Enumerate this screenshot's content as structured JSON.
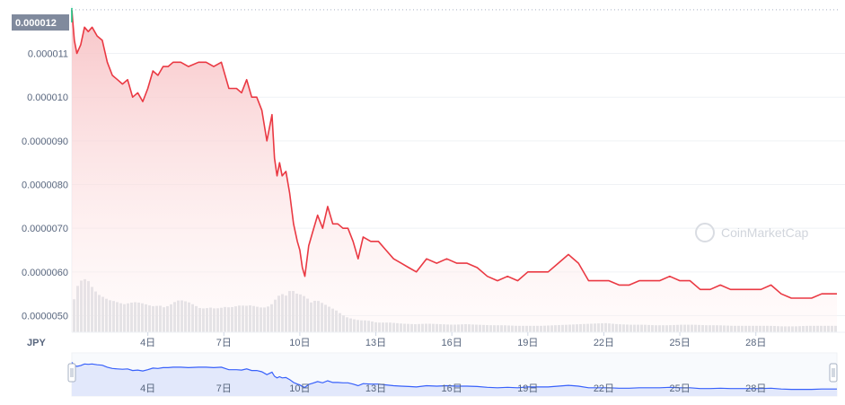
{
  "currency": "JPY",
  "watermark": "CoinMarketCap",
  "current_price_label": "0.000012",
  "colors": {
    "line": "#ea3943",
    "area_top": "#f7c1c4",
    "area_bottom": "#fff3f3",
    "up_segment": "#16c784",
    "volume": "#d9dce1",
    "navigator_fill": "#e2e8fb",
    "navigator_line": "#3861fb",
    "price_tag_bg": "#808a9d"
  },
  "chart_data": {
    "type": "line",
    "xlabel": "",
    "ylabel": "",
    "x_ticks": [
      "4日",
      "7日",
      "10日",
      "13日",
      "16日",
      "19日",
      "22日",
      "25日",
      "28日"
    ],
    "x_tick_days": [
      4,
      7,
      10,
      13,
      16,
      19,
      22,
      25,
      28
    ],
    "y_ticks": [
      "0.0000050",
      "0.0000060",
      "0.0000070",
      "0.0000080",
      "0.0000090",
      "0.000010",
      "0.000011"
    ],
    "y_tick_values": [
      5e-06,
      6e-06,
      7e-06,
      8e-06,
      9e-06,
      1e-05,
      1.1e-05
    ],
    "xlim": [
      1.0,
      31.2
    ],
    "ylim": [
      4.62e-06,
      1.21e-05
    ],
    "series": [
      {
        "day": [
          1.0,
          1.1,
          1.2,
          1.35,
          1.5,
          1.65,
          1.8,
          2.0,
          2.2,
          2.4,
          2.6,
          2.8,
          3.0,
          3.2,
          3.4,
          3.6,
          3.8,
          4.0,
          4.2,
          4.4,
          4.6,
          4.8,
          5.0,
          5.3,
          5.6,
          6.0,
          6.3,
          6.6,
          6.9,
          7.2,
          7.5,
          7.7,
          7.9,
          8.1,
          8.3,
          8.5,
          8.7,
          8.9,
          9.0,
          9.1,
          9.2,
          9.3,
          9.45,
          9.6,
          9.75,
          9.9,
          10.0,
          10.1,
          10.2,
          10.35,
          10.5,
          10.7,
          10.9,
          11.1,
          11.3,
          11.5,
          11.7,
          11.9,
          12.1,
          12.3,
          12.5,
          12.8,
          13.1,
          13.4,
          13.7,
          14.0,
          14.3,
          14.6,
          15.0,
          15.4,
          15.8,
          16.2,
          16.6,
          17.0,
          17.4,
          17.8,
          18.2,
          18.6,
          19.0,
          19.4,
          19.8,
          20.2,
          20.6,
          21.0,
          21.4,
          21.8,
          22.2,
          22.6,
          23.0,
          23.4,
          23.8,
          24.2,
          24.6,
          25.0,
          25.4,
          25.8,
          26.2,
          26.6,
          27.0,
          27.4,
          27.8,
          28.2,
          28.6,
          29.0,
          29.4,
          29.8,
          30.2,
          30.6,
          31.0,
          31.2
        ],
        "price": [
          1.2e-05,
          1.13e-05,
          1.1e-05,
          1.12e-05,
          1.16e-05,
          1.15e-05,
          1.16e-05,
          1.14e-05,
          1.13e-05,
          1.08e-05,
          1.05e-05,
          1.04e-05,
          1.03e-05,
          1.04e-05,
          1e-05,
          1.01e-05,
          9.9e-06,
          1.02e-05,
          1.06e-05,
          1.05e-05,
          1.07e-05,
          1.07e-05,
          1.08e-05,
          1.08e-05,
          1.07e-05,
          1.08e-05,
          1.08e-05,
          1.07e-05,
          1.08e-05,
          1.02e-05,
          1.02e-05,
          1.01e-05,
          1.04e-05,
          1e-05,
          1e-05,
          9.7e-06,
          9e-06,
          9.6e-06,
          8.6e-06,
          8.2e-06,
          8.5e-06,
          8.2e-06,
          8.3e-06,
          7.8e-06,
          7.1e-06,
          6.7e-06,
          6.5e-06,
          6.1e-06,
          5.9e-06,
          6.6e-06,
          6.9e-06,
          7.3e-06,
          7e-06,
          7.5e-06,
          7.1e-06,
          7.1e-06,
          7e-06,
          7e-06,
          6.7e-06,
          6.3e-06,
          6.8e-06,
          6.7e-06,
          6.7e-06,
          6.5e-06,
          6.3e-06,
          6.2e-06,
          6.1e-06,
          6e-06,
          6.3e-06,
          6.2e-06,
          6.3e-06,
          6.2e-06,
          6.2e-06,
          6.1e-06,
          5.9e-06,
          5.8e-06,
          5.9e-06,
          5.8e-06,
          6e-06,
          6e-06,
          6e-06,
          6.2e-06,
          6.4e-06,
          6.2e-06,
          5.8e-06,
          5.8e-06,
          5.8e-06,
          5.7e-06,
          5.7e-06,
          5.8e-06,
          5.8e-06,
          5.8e-06,
          5.9e-06,
          5.8e-06,
          5.8e-06,
          5.6e-06,
          5.6e-06,
          5.7e-06,
          5.6e-06,
          5.6e-06,
          5.6e-06,
          5.6e-06,
          5.7e-06,
          5.5e-06,
          5.4e-06,
          5.4e-06,
          5.4e-06,
          5.5e-06,
          5.5e-06,
          5.5e-06
        ]
      }
    ],
    "volume": {
      "day": [
        1.0,
        1.2,
        1.4,
        1.6,
        1.8,
        2.0,
        2.2,
        2.4,
        2.6,
        2.8,
        3.0,
        3.2,
        3.4,
        3.6,
        3.8,
        4.0,
        4.2,
        4.4,
        4.6,
        4.8,
        5.0,
        5.2,
        5.4,
        5.6,
        5.8,
        6.0,
        6.2,
        6.4,
        6.6,
        6.8,
        7.0,
        7.2,
        7.4,
        7.6,
        7.8,
        8.0,
        8.2,
        8.4,
        8.6,
        8.8,
        9.0,
        9.2,
        9.4,
        9.6,
        9.8,
        10.0,
        10.2,
        10.4,
        10.6,
        10.8,
        11.0,
        11.2,
        11.4,
        11.6,
        11.8,
        12.0,
        12.2,
        12.4,
        12.6,
        12.8,
        13.0,
        13.5,
        14.0,
        14.5,
        15.0,
        15.5,
        16.0,
        16.5,
        17.0,
        17.5,
        18.0,
        18.5,
        19.0,
        19.5,
        20.0,
        20.5,
        21.0,
        21.5,
        22.0,
        22.5,
        23.0,
        23.5,
        24.0,
        24.5,
        25.0,
        25.5,
        26.0,
        26.5,
        27.0,
        27.5,
        28.0,
        28.5,
        29.0,
        29.5,
        30.0,
        30.5,
        31.0
      ],
      "value": [
        0.55,
        0.9,
        1.0,
        0.95,
        0.8,
        0.7,
        0.65,
        0.6,
        0.58,
        0.55,
        0.52,
        0.54,
        0.56,
        0.55,
        0.53,
        0.5,
        0.48,
        0.5,
        0.46,
        0.5,
        0.56,
        0.6,
        0.58,
        0.55,
        0.5,
        0.45,
        0.44,
        0.46,
        0.44,
        0.45,
        0.47,
        0.46,
        0.48,
        0.5,
        0.49,
        0.5,
        0.48,
        0.46,
        0.46,
        0.5,
        0.62,
        0.72,
        0.68,
        0.8,
        0.72,
        0.7,
        0.65,
        0.55,
        0.6,
        0.55,
        0.5,
        0.45,
        0.4,
        0.33,
        0.28,
        0.25,
        0.23,
        0.22,
        0.22,
        0.2,
        0.18,
        0.18,
        0.16,
        0.15,
        0.16,
        0.15,
        0.14,
        0.15,
        0.14,
        0.13,
        0.13,
        0.12,
        0.12,
        0.12,
        0.13,
        0.14,
        0.15,
        0.16,
        0.17,
        0.15,
        0.14,
        0.14,
        0.13,
        0.13,
        0.14,
        0.14,
        0.13,
        0.13,
        0.12,
        0.12,
        0.12,
        0.12,
        0.11,
        0.11,
        0.12,
        0.12,
        0.12
      ]
    },
    "grid": true,
    "legend": "none"
  }
}
